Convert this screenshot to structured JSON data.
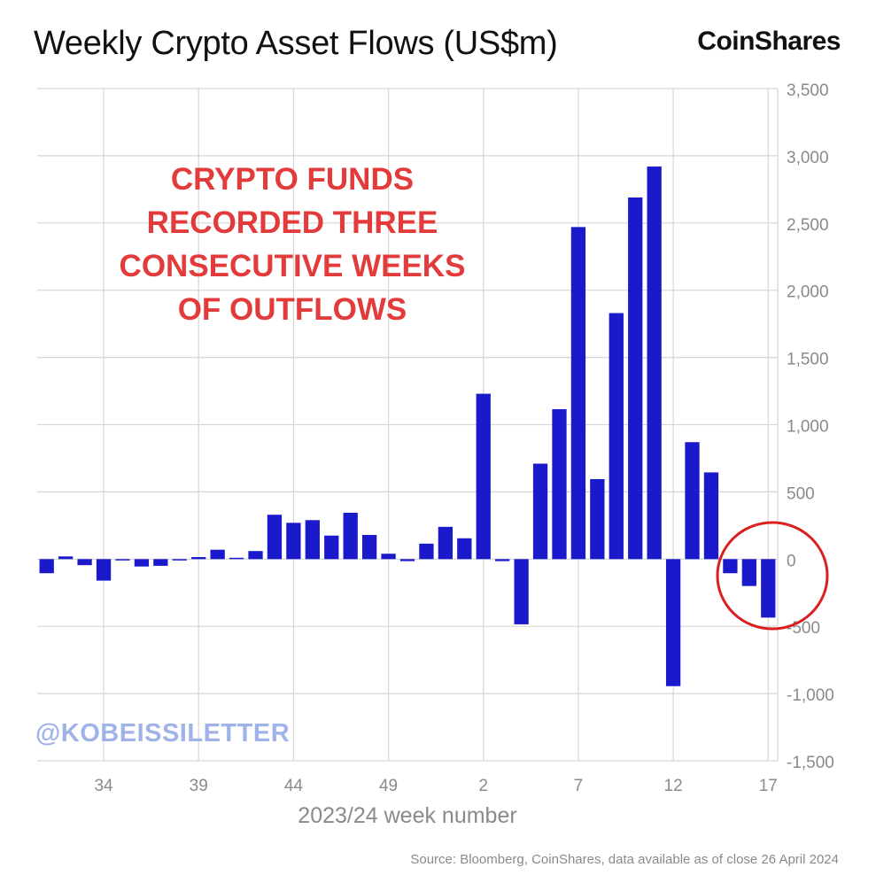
{
  "brand": "CoinShares",
  "annotation": "CRYPTO FUNDS\nRECORDED THREE\nCONSECUTIVE WEEKS\nOF OUTFLOWS",
  "watermark": "@KOBEISSILETTER",
  "source": "Source: Bloomberg, CoinShares, data available as of close 26 April 2024",
  "colors": {
    "bar": "#1a1acc",
    "annotation": "#e33b3b",
    "circle": "#d92020",
    "watermark": "#9fb3e8",
    "grid": "#d6d6d6"
  },
  "chart_data": {
    "type": "bar",
    "title": "Weekly Crypto Asset Flows (US$m)",
    "xlabel": "2023/24 week number",
    "ylabel": "",
    "ylim": [
      -1500,
      3500
    ],
    "yticks": [
      3500,
      3000,
      2500,
      2000,
      1500,
      1000,
      500,
      0,
      -500,
      -1000,
      -1500
    ],
    "ytick_labels": [
      "3,500",
      "3,000",
      "2,500",
      "2,000",
      "1,500",
      "1,000",
      "500",
      "0",
      "-500",
      "-1,000",
      "-1,500"
    ],
    "categories": [
      "31",
      "32",
      "33",
      "34",
      "35",
      "36",
      "37",
      "38",
      "39",
      "40",
      "41",
      "42",
      "43",
      "44",
      "45",
      "46",
      "47",
      "48",
      "49",
      "50",
      "51",
      "52",
      "1",
      "2",
      "3",
      "4",
      "5",
      "6",
      "7",
      "8",
      "9",
      "10",
      "11",
      "12",
      "13",
      "14",
      "15",
      "16",
      "17"
    ],
    "xtick_labels": [
      "34",
      "39",
      "44",
      "49",
      "2",
      "7",
      "12",
      "17"
    ],
    "values": [
      -105,
      20,
      -45,
      -160,
      0,
      -55,
      -50,
      -10,
      15,
      70,
      10,
      60,
      330,
      270,
      290,
      175,
      345,
      180,
      40,
      -15,
      115,
      240,
      155,
      1230,
      -15,
      -485,
      710,
      1115,
      2470,
      595,
      1830,
      2690,
      2920,
      -945,
      870,
      645,
      -105,
      -200,
      -435
    ],
    "grid": true,
    "legend": "none"
  }
}
